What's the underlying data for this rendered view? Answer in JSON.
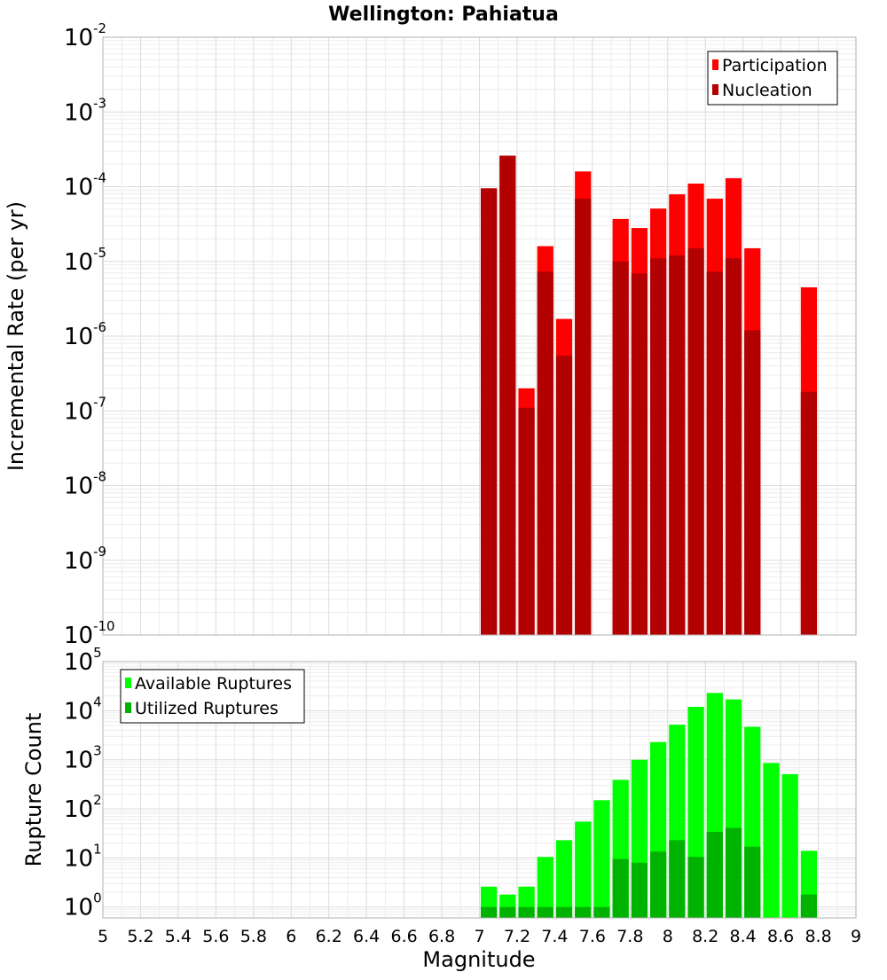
{
  "chart_data": [
    {
      "type": "bar",
      "title": "Wellington: Pahiatua",
      "ylabel": "Incremental Rate (per yr)",
      "xlabel": "",
      "xlim": [
        5,
        9
      ],
      "ylim": [
        1e-10,
        0.01
      ],
      "yscale": "log",
      "y_tick_exponents": [
        -10,
        -9,
        -8,
        -7,
        -6,
        -5,
        -4,
        -3,
        -2
      ],
      "grid": true,
      "legend_position": "top-right",
      "bar_width": 0.1,
      "series": [
        {
          "name": "Participation",
          "color": "#ff0000",
          "x": [
            7.0,
            7.1,
            7.2,
            7.3,
            7.4,
            7.5,
            7.7,
            7.8,
            7.9,
            8.0,
            8.1,
            8.2,
            8.3,
            8.4,
            8.7
          ],
          "values": [
            9.5e-05,
            0.00026,
            2e-07,
            1.6e-05,
            1.7e-06,
            0.00016,
            3.7e-05,
            2.8e-05,
            5.1e-05,
            7.9e-05,
            0.00011,
            6.9e-05,
            0.00013,
            1.5e-05,
            4.5e-06
          ]
        },
        {
          "name": "Nucleation",
          "color": "#b30000",
          "x": [
            7.0,
            7.1,
            7.2,
            7.3,
            7.4,
            7.5,
            7.7,
            7.8,
            7.9,
            8.0,
            8.1,
            8.2,
            8.3,
            8.4,
            8.7
          ],
          "values": [
            9.5e-05,
            0.00026,
            1.1e-07,
            7.3e-06,
            5.5e-07,
            6.9e-05,
            1e-05,
            6.9e-06,
            1.1e-05,
            1.2e-05,
            1.5e-05,
            7.3e-06,
            1.1e-05,
            1.2e-06,
            1.8e-07
          ]
        }
      ]
    },
    {
      "type": "bar",
      "xlabel": "Magnitude",
      "ylabel": "Rupture Count",
      "xlim": [
        5,
        9
      ],
      "x_ticks": [
        "5",
        "5.2",
        "5.4",
        "5.6",
        "5.8",
        "6",
        "6.2",
        "6.4",
        "6.6",
        "6.8",
        "7",
        "7.2",
        "7.4",
        "7.6",
        "7.8",
        "8",
        "8.2",
        "8.4",
        "8.6",
        "8.8",
        "9"
      ],
      "ylim": [
        0.6,
        100000.0
      ],
      "yscale": "log",
      "y_tick_exponents": [
        0,
        1,
        2,
        3,
        4,
        5
      ],
      "grid": true,
      "legend_position": "top-left",
      "bar_width": 0.1,
      "series": [
        {
          "name": "Available Ruptures",
          "color": "#00ff00",
          "x": [
            7.0,
            7.1,
            7.2,
            7.3,
            7.4,
            7.5,
            7.6,
            7.7,
            7.8,
            7.9,
            8.0,
            8.1,
            8.2,
            8.3,
            8.4,
            8.5,
            8.6,
            8.7
          ],
          "values": [
            2.6,
            1.8,
            2.6,
            10.5,
            23,
            55,
            150,
            390,
            1000,
            2300,
            5200,
            12000,
            23000,
            17000,
            4700,
            860,
            510,
            14
          ]
        },
        {
          "name": "Utilized Ruptures",
          "color": "#00b300",
          "x": [
            7.0,
            7.1,
            7.2,
            7.3,
            7.4,
            7.5,
            7.6,
            7.7,
            7.8,
            7.9,
            8.0,
            8.1,
            8.2,
            8.3,
            8.4,
            8.5,
            8.6,
            8.7
          ],
          "values": [
            1,
            1,
            1,
            1,
            1,
            1,
            1,
            9.5,
            8,
            13.5,
            23,
            10.5,
            34,
            41,
            17,
            0,
            0,
            1.8
          ]
        }
      ]
    }
  ]
}
